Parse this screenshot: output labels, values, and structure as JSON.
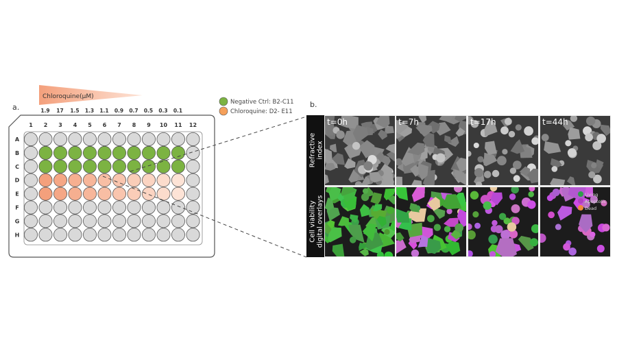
{
  "panel_a": {
    "label": "a.",
    "gradient_title": "Chloroquine(µM)",
    "concentrations": [
      "1.9",
      "17",
      "1.5",
      "1.3",
      "1.1",
      "0.9",
      "0.7",
      "0.5",
      "0.3",
      "0.1"
    ],
    "columns": [
      "1",
      "2",
      "3",
      "4",
      "5",
      "6",
      "7",
      "8",
      "9",
      "10",
      "11",
      "12"
    ],
    "rows": [
      "A",
      "B",
      "C",
      "D",
      "E",
      "F",
      "G",
      "H"
    ],
    "legend": [
      {
        "label": "Negative Ctrl: B2-C11",
        "color": "#7cb342"
      },
      {
        "label": "Chloroquine: D2- E11",
        "color": "#f5a05a"
      }
    ],
    "colors": {
      "empty": "#d9d9d9",
      "control": "#7cb342",
      "chloroquine_strong": "#f4a07c",
      "chloroquine_weak": "#fde3d6",
      "wedge": "#f6b394"
    }
  },
  "panel_b": {
    "label": "b.",
    "row_labels": [
      "Refractive index",
      "Cell viability digital overlays"
    ],
    "row_label_lines": [
      [
        "Refractive",
        "index"
      ],
      [
        "Cell viability",
        "digital overlays"
      ]
    ],
    "timepoints": [
      "t=0h",
      "t=7h",
      "t=17h",
      "t=44h"
    ],
    "legend": [
      {
        "label": "Living",
        "color": "#2e9e4a"
      },
      {
        "label": "Apoptotic",
        "color": "#b040c0"
      },
      {
        "label": "Dead",
        "color": "#f08a3c"
      }
    ]
  }
}
